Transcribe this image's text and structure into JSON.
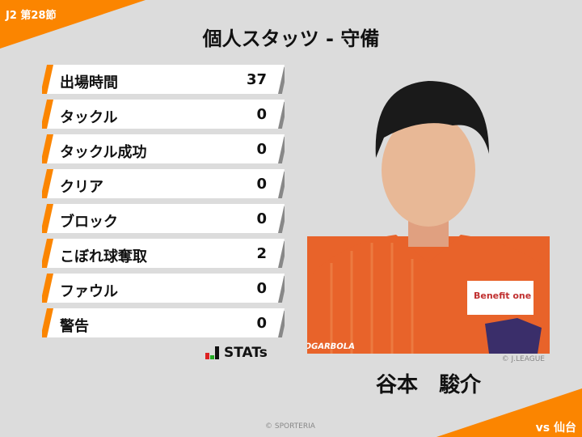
{
  "header": {
    "round": "J2 第28節",
    "title": "個人スタッツ - 守備"
  },
  "stats": [
    {
      "label": "出場時間",
      "value": "37"
    },
    {
      "label": "タックル",
      "value": "0"
    },
    {
      "label": "タックル成功",
      "value": "0"
    },
    {
      "label": "クリア",
      "value": "0"
    },
    {
      "label": "ブロック",
      "value": "0"
    },
    {
      "label": "こぼれ球奪取",
      "value": "2"
    },
    {
      "label": "ファウル",
      "value": "0"
    },
    {
      "label": "警告",
      "value": "0"
    }
  ],
  "brand": {
    "stats_logo": "STATs"
  },
  "player": {
    "name": "谷本　駿介",
    "photo_credit": "© J.LEAGUE",
    "jersey_text": "JOGARBOLA",
    "sponsor": "Benefit one"
  },
  "footer": {
    "credit": "© SPORTERIA",
    "opponent": "vs 仙台"
  },
  "colors": {
    "accent": "#fb8500",
    "background": "#dcdcdc"
  }
}
